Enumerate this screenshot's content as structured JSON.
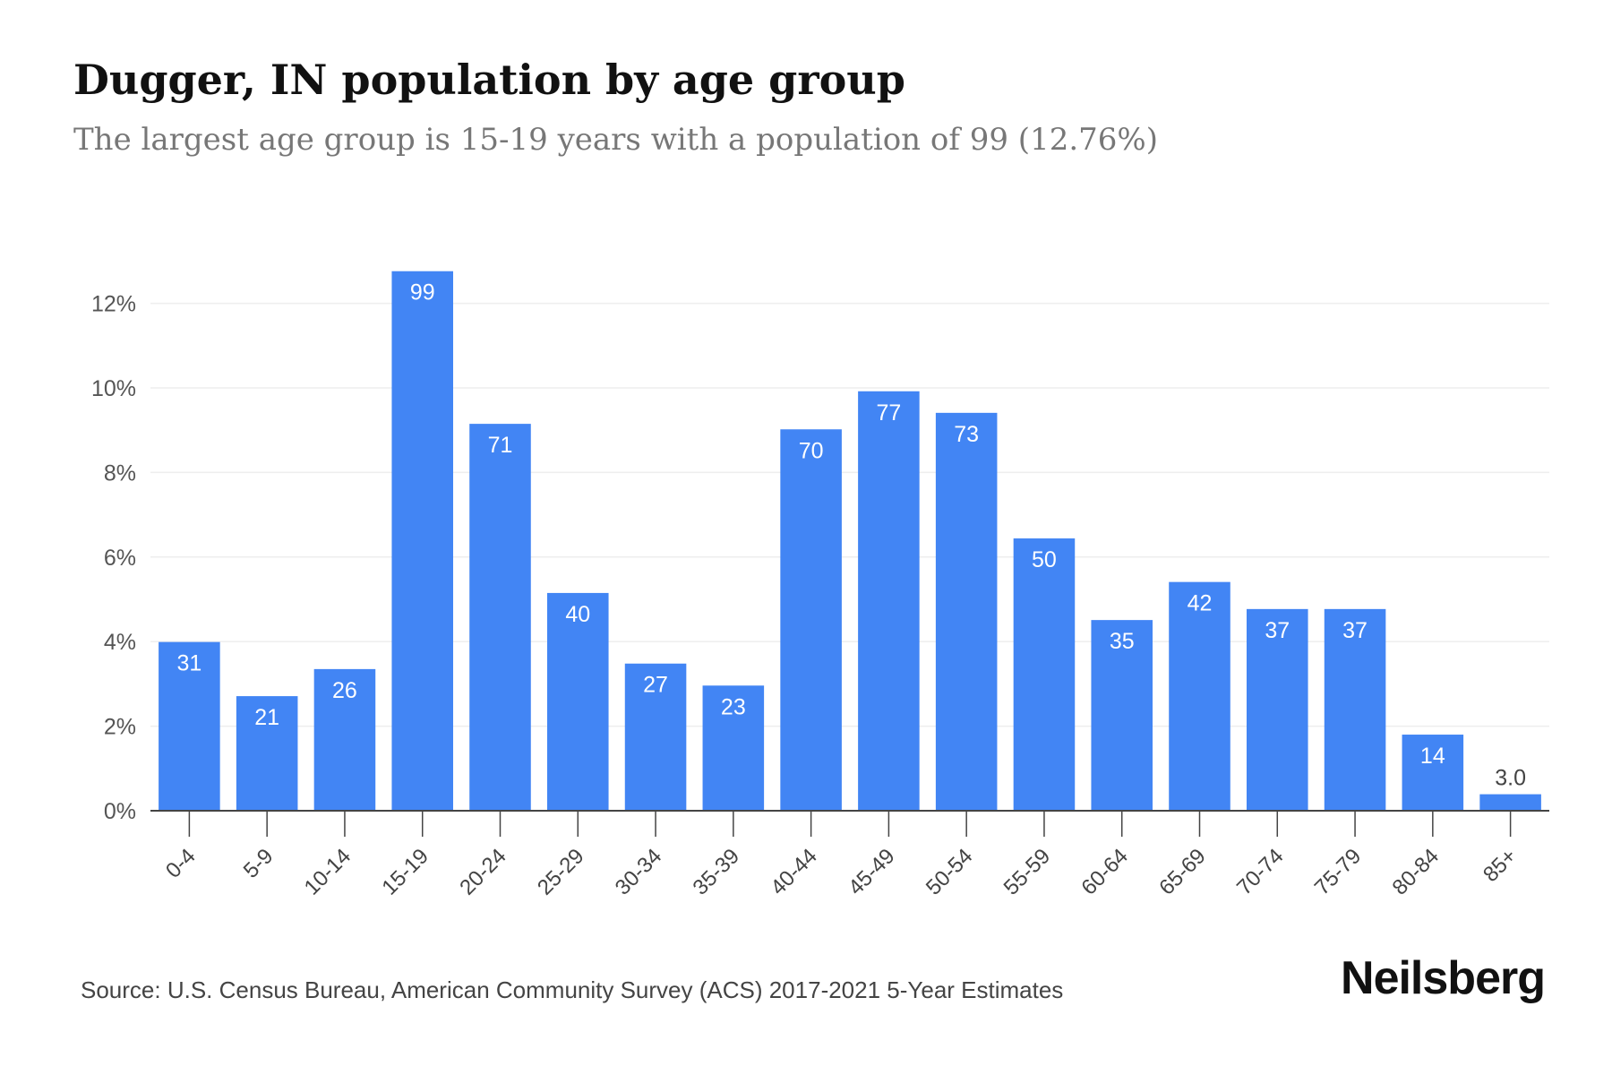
{
  "title": "Dugger, IN population by age group",
  "subtitle": "The largest age group is 15-19 years with a population of 99 (12.76%)",
  "source": "Source: U.S. Census Bureau, American Community Survey (ACS) 2017-2021 5-Year Estimates",
  "brand": "Neilsberg",
  "colors": {
    "bar": "#4285f4",
    "bar_label": "#ffffff",
    "outside_label": "#444444",
    "axis": "#444444",
    "grid": "#eeeeee"
  },
  "chart_data": {
    "type": "bar",
    "title": "Dugger, IN population by age group",
    "subtitle": "The largest age group is 15-19 years with a population of 99 (12.76%)",
    "xlabel": "",
    "ylabel": "",
    "categories": [
      "0-4",
      "5-9",
      "10-14",
      "15-19",
      "20-24",
      "25-29",
      "30-34",
      "35-39",
      "40-44",
      "45-49",
      "50-54",
      "55-59",
      "60-64",
      "65-69",
      "70-74",
      "75-79",
      "80-84",
      "85+"
    ],
    "series": [
      {
        "name": "Population share (%)",
        "values": [
          3.99,
          2.71,
          3.35,
          12.76,
          9.15,
          5.15,
          3.48,
          2.96,
          9.02,
          9.92,
          9.41,
          6.44,
          4.51,
          5.41,
          4.77,
          4.77,
          1.8,
          0.39
        ]
      }
    ],
    "data_labels": [
      "31",
      "21",
      "26",
      "99",
      "71",
      "40",
      "27",
      "23",
      "70",
      "77",
      "73",
      "50",
      "35",
      "42",
      "37",
      "37",
      "14",
      "3.0"
    ],
    "yticks": [
      0,
      2,
      4,
      6,
      8,
      10,
      12
    ],
    "ytick_labels": [
      "0%",
      "2%",
      "4%",
      "6%",
      "8%",
      "10%",
      "12%"
    ],
    "ylim": [
      0,
      13
    ],
    "grid": true,
    "legend": "none"
  }
}
